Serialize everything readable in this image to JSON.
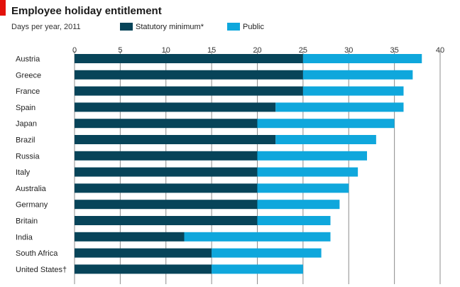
{
  "header": {
    "title": "Employee holiday entitlement",
    "subtitle": "Days per year, 2011"
  },
  "colors": {
    "accent_bar": "#e3120b",
    "statutory": "#074459",
    "public": "#0fa7dc",
    "background": "#ffffff"
  },
  "chart_data": {
    "type": "bar",
    "orientation": "horizontal",
    "stacked": true,
    "title": "Employee holiday entitlement",
    "subtitle": "Days per year, 2011",
    "xlim": [
      0,
      40
    ],
    "ticks": [
      0,
      5,
      10,
      15,
      20,
      25,
      30,
      35,
      40
    ],
    "grid": true,
    "legend_position": "top",
    "categories": [
      "Austria",
      "Greece",
      "France",
      "Spain",
      "Japan",
      "Brazil",
      "Russia",
      "Italy",
      "Australia",
      "Germany",
      "Britain",
      "India",
      "South Africa",
      "United States†"
    ],
    "series": [
      {
        "name": "Statutory minimum*",
        "color": "#074459",
        "values": [
          25,
          25,
          25,
          22,
          20,
          22,
          20,
          20,
          20,
          20,
          20,
          12,
          15,
          15
        ]
      },
      {
        "name": "Public",
        "color": "#0fa7dc",
        "values": [
          13,
          12,
          11,
          14,
          15,
          11,
          12,
          11,
          10,
          9,
          8,
          16,
          12,
          10
        ]
      }
    ]
  }
}
